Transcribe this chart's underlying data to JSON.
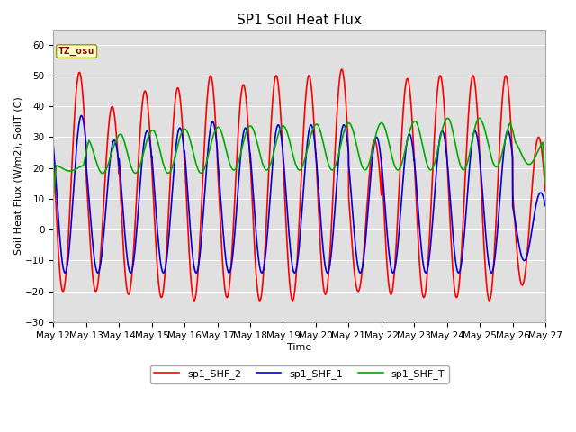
{
  "title": "SP1 Soil Heat Flux",
  "xlabel": "Time",
  "ylabel": "Soil Heat Flux (W/m2), SoilT (C)",
  "ylim": [
    -30,
    65
  ],
  "yticks": [
    -30,
    -20,
    -10,
    0,
    10,
    20,
    30,
    40,
    50,
    60
  ],
  "annotation_text": "TZ_osu",
  "annotation_color": "#880000",
  "annotation_bg": "#ffffcc",
  "annotation_border": "#999900",
  "line_red": {
    "color": "#ff0000",
    "label": "sp1_SHF_2",
    "linewidth": 1.2
  },
  "line_blue": {
    "color": "#0000dd",
    "label": "sp1_SHF_1",
    "linewidth": 1.2
  },
  "line_green": {
    "color": "#00aa00",
    "label": "sp1_SHF_T",
    "linewidth": 1.2
  },
  "bg_color": "#ffffff",
  "plot_bg_color": "#e0e0e0",
  "grid_color": "#ffffff",
  "n_days": 15,
  "start_day": 12,
  "xtick_labels": [
    "May 12",
    "May 13",
    "May 14",
    "May 15",
    "May 16",
    "May 17",
    "May 18",
    "May 19",
    "May 20",
    "May 21",
    "May 22",
    "May 23",
    "May 24",
    "May 25",
    "May 26",
    "May 27"
  ],
  "title_fontsize": 11,
  "axis_label_fontsize": 8,
  "tick_fontsize": 7.5,
  "legend_fontsize": 8,
  "annotation_fontsize": 8
}
